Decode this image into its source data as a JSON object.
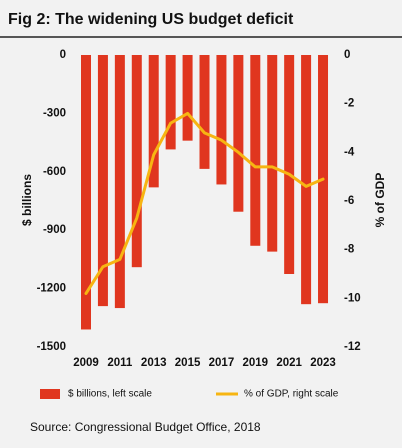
{
  "chart_data": {
    "type": "bar",
    "title": "Fig 2: The widening US budget deficit",
    "ylabel": "$ billions",
    "y2label": "% of GDP",
    "source": "Source: Congressional Budget Office, 2018",
    "categories": [
      "2009",
      null,
      "2011",
      null,
      "2013",
      null,
      "2015",
      null,
      "2017",
      null,
      "2019",
      null,
      "2021",
      null,
      "2023"
    ],
    "series": [
      {
        "name": "$ billions, left scale",
        "color": "#e0361f",
        "type": "bar",
        "values": [
          -1410,
          -1290,
          -1300,
          -1090,
          -680,
          -485,
          -440,
          -585,
          -665,
          -805,
          -980,
          -1010,
          -1125,
          -1280,
          -1275
        ]
      },
      {
        "name": "% of GDP, right scale",
        "color": "#f7b512",
        "type": "line",
        "axis": "y2",
        "values": [
          -9.8,
          -8.7,
          -8.4,
          -6.7,
          -4.1,
          -2.8,
          -2.4,
          -3.2,
          -3.5,
          -4.0,
          -4.6,
          -4.6,
          -4.9,
          -5.4,
          -5.1
        ]
      }
    ],
    "ylim": [
      -1500,
      0
    ],
    "yticks": [
      0,
      -300,
      -600,
      -900,
      -1200,
      -1500
    ],
    "y2lim": [
      -12,
      0
    ],
    "y2ticks": [
      0,
      -2,
      -4,
      -6,
      -8,
      -10,
      -12
    ]
  }
}
